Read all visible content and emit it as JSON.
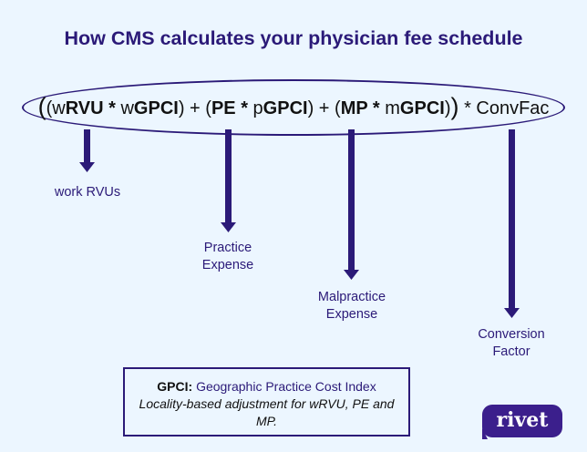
{
  "title": "How CMS calculates your physician fee schedule",
  "formula": {
    "open_outer": "(",
    "open_inner": "(",
    "w_prefix": "w",
    "rvu": "RVU *",
    "w_gpci_prefix": "w",
    "w_gpci": "GPCI",
    "close1": ") + (",
    "pe": "PE *",
    "p_prefix": "p",
    "p_gpci": "GPCI",
    "close2": ") + (",
    "mp": "MP *",
    "m_prefix": "m",
    "m_gpci": "GPCI",
    "close3": ")",
    "close_outer": ")",
    "conv": "* ConvFac"
  },
  "labels": {
    "work": [
      "work RVUs"
    ],
    "practice": [
      "Practice",
      "Expense"
    ],
    "malpractice": [
      "Malpractice",
      "Expense"
    ],
    "conversion": [
      "Conversion",
      "Factor"
    ]
  },
  "gpci_note": {
    "term": "GPCI:",
    "expansion": "Geographic Practice Cost Index",
    "description": "Locality-based adjustment for wRVU, PE and MP."
  },
  "logo": "rivet",
  "colors": {
    "primary": "#2b1a78",
    "background": "#ecf6ff",
    "logo_bg": "#3b1f8c"
  }
}
